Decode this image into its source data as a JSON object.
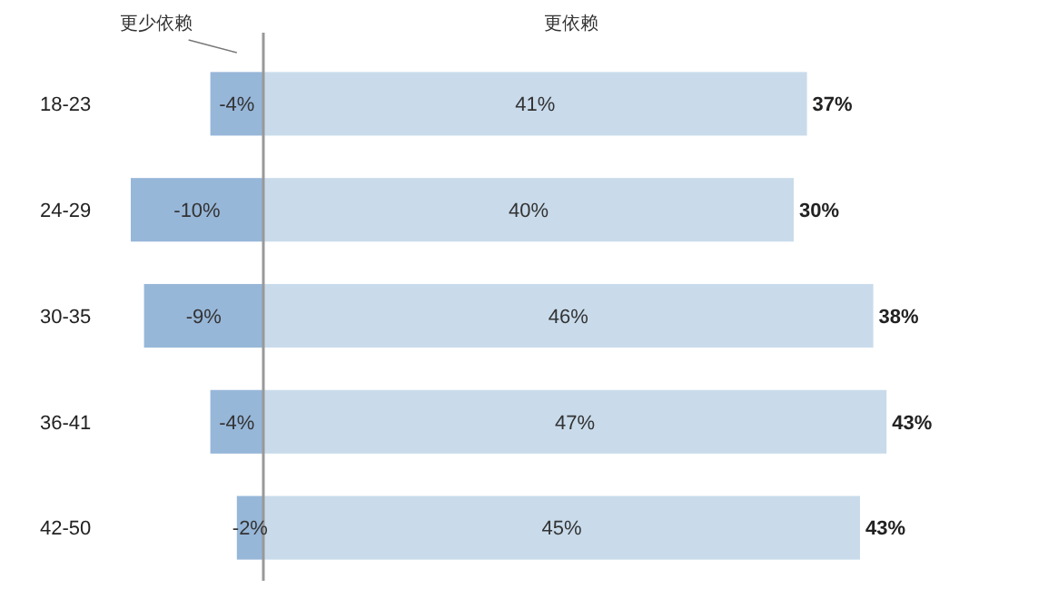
{
  "chart_data": {
    "type": "bar",
    "orientation": "horizontal",
    "stacked": true,
    "legend": false,
    "categories": [
      "18-23",
      "24-29",
      "30-35",
      "36-41",
      "42-50"
    ],
    "series": [
      {
        "name": "更少依赖",
        "color": "#97b7d9",
        "values": [
          -4,
          -10,
          -9,
          -4,
          -2
        ],
        "value_labels": [
          "-4%",
          "-10%",
          "-9%",
          "-4%",
          "-2%"
        ]
      },
      {
        "name": "更依赖",
        "color": "#c9dbeb",
        "values": [
          41,
          40,
          46,
          47,
          45
        ],
        "value_labels": [
          "41%",
          "40%",
          "46%",
          "47%",
          "45%"
        ]
      }
    ],
    "totals": [
      "37%",
      "30%",
      "38%",
      "43%",
      "43%"
    ]
  }
}
